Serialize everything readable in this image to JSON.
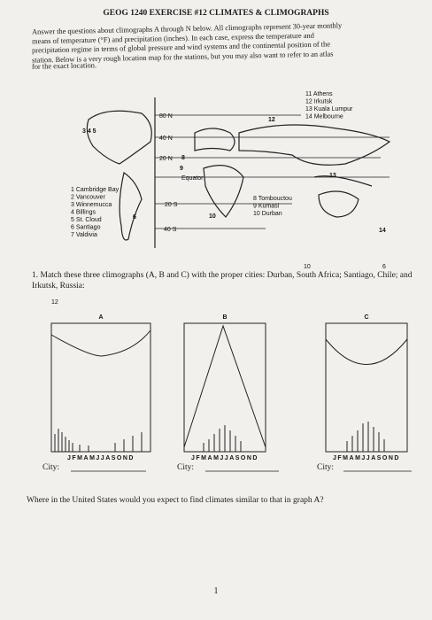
{
  "header": {
    "title": "GEOG 1240 EXERCISE #12 CLIMATES & CLIMOGRAPHS"
  },
  "intro": [
    "Answer the questions about climographs A through N below. All climographs represent 30-year monthly",
    "means of temperature (°F) and precipitation (inches). In each case, express the temperature and",
    "precipitation regime in terms of global pressure and wind systems and the continental position of the",
    "station. Below is a very rough location map for the stations, but you may also want to refer to an atlas",
    "for the exact location."
  ],
  "map": {
    "latitudes": [
      "80 N",
      "40 N",
      "20 N",
      "Equator",
      "20 S",
      "40 S"
    ],
    "numbers": [
      "3 4 5",
      "12",
      "8",
      "9",
      "10",
      "6",
      "14",
      "13"
    ],
    "stations_left": [
      "1 Cambridge Bay",
      "2 Vancouver",
      "3 Winnemucca",
      "4 Billings",
      "5 St. Cloud",
      "6 Santiago",
      "7 Valdivia"
    ],
    "stations_middle": [
      "8 Tombouctou",
      "9 Kumasi",
      "10 Durban"
    ],
    "stations_right": [
      "11 Athens",
      "12 Irkutsk",
      "13 Kuala Lumpur",
      "14 Melbourne"
    ]
  },
  "handwritten": [
    "10",
    "6",
    "12"
  ],
  "question1": "1. Match these three climographs (A, B and C) with the proper cities: Durban, South Africa; Santiago, Chile; and Irkutsk, Russia:",
  "graphs": [
    {
      "label": "A",
      "months": "JFMAMJJASOND",
      "city": "City:"
    },
    {
      "label": "B",
      "months": "JFMAMJJASOND",
      "city": "City:"
    },
    {
      "label": "C",
      "months": "JFMAMJJASOND",
      "city": "City:"
    }
  ],
  "question2": "Where in the United States would you expect to find climates similar to that in graph A?",
  "page_number": "1"
}
